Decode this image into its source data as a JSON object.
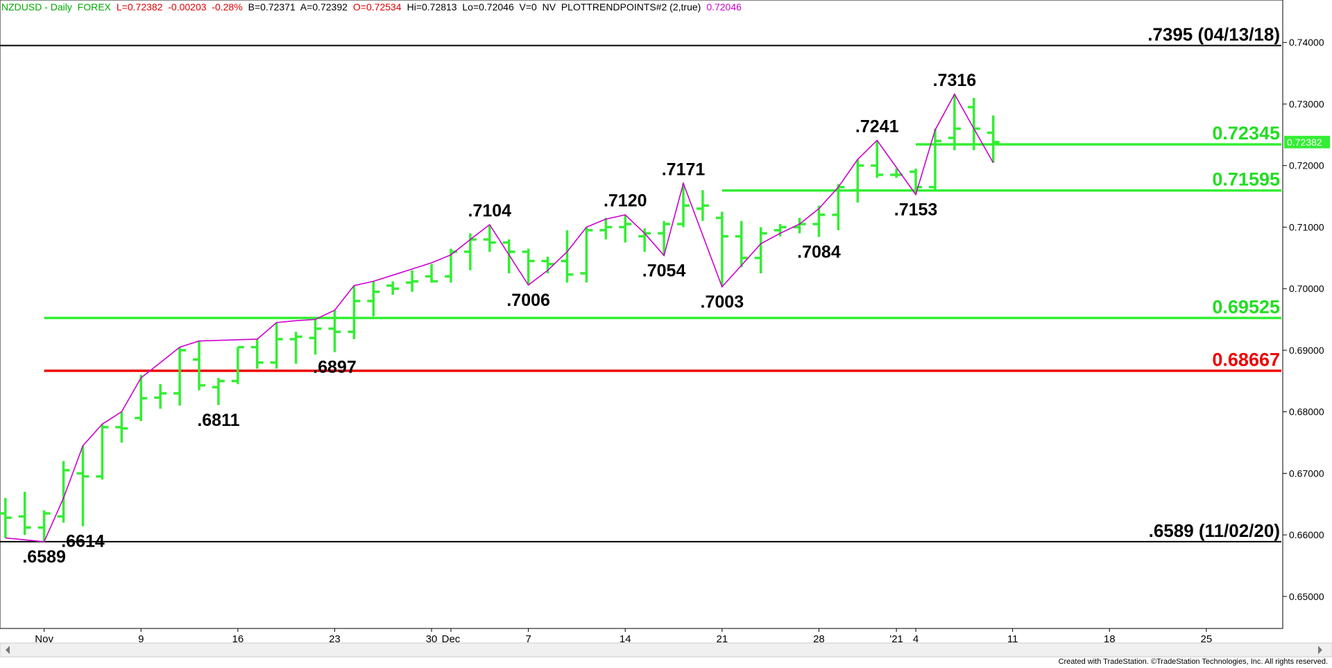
{
  "header": [
    {
      "text": "NZDUSD - Daily  FOREX",
      "color": "#00aa00"
    },
    {
      "text": "L=0.72382  -0.00203  -0.28%",
      "color": "#dd0000"
    },
    {
      "text": "B=0.72371  A=0.72392",
      "color": "#000000"
    },
    {
      "text": "O=0.72534",
      "color": "#dd0000"
    },
    {
      "text": "Hi=0.72813  Lo=0.72046  V=0  NV  PLOTTRENDPOINTS#2 (2,true)",
      "color": "#000000"
    },
    {
      "text": "0.72046",
      "color": "#cc00cc"
    }
  ],
  "footer": "Created with TradeStation. ©TradeStation Technologies, Inc. All rights reserved.",
  "chart_data": {
    "type": "ohlc",
    "color": "#33ee33",
    "trend_color": "#cc00cc",
    "ylim": [
      0.6448,
      0.7469
    ],
    "yticks": [
      {
        "value": 0.65,
        "label": "0.65000"
      },
      {
        "value": 0.66,
        "label": "0.66000"
      },
      {
        "value": 0.67,
        "label": "0.67000"
      },
      {
        "value": 0.68,
        "label": "0.68000"
      },
      {
        "value": 0.69,
        "label": "0.69000"
      },
      {
        "value": 0.7,
        "label": "0.70000"
      },
      {
        "value": 0.71,
        "label": "0.71000"
      },
      {
        "value": 0.72,
        "label": "0.72000"
      },
      {
        "value": 0.73,
        "label": "0.73000"
      },
      {
        "value": 0.74,
        "label": "0.74000"
      }
    ],
    "categories": [
      null,
      null,
      "Nov",
      null,
      null,
      null,
      null,
      "9",
      null,
      null,
      null,
      null,
      "16",
      null,
      null,
      null,
      null,
      "23",
      null,
      null,
      null,
      null,
      "30",
      "Dec",
      null,
      null,
      null,
      "7",
      null,
      null,
      null,
      null,
      "14",
      null,
      null,
      null,
      null,
      "21",
      null,
      null,
      null,
      null,
      "28",
      null,
      null,
      null,
      "'21",
      "4",
      null,
      null,
      null,
      null,
      "11",
      null,
      null,
      null,
      null,
      "18",
      null,
      null,
      null,
      null,
      "25",
      null,
      null,
      null
    ],
    "open": [
      0.6635,
      0.663,
      0.6612,
      0.663,
      0.67,
      0.6695,
      0.6775,
      0.679,
      0.6823,
      0.683,
      0.6885,
      0.684,
      0.685,
      0.6905,
      0.688,
      0.6918,
      0.692,
      0.6935,
      0.693,
      0.698,
      0.7005,
      0.701,
      0.702,
      0.702,
      0.706,
      0.708,
      0.7075,
      0.706,
      0.7045,
      0.7045,
      0.7025,
      0.7095,
      0.71,
      0.7085,
      0.709,
      0.7105,
      0.713,
      0.7115,
      0.7085,
      0.705,
      0.7095,
      0.71,
      0.7105,
      0.712,
      0.716,
      0.72,
      0.7185,
      0.719,
      0.7165,
      0.7245,
      0.7295,
      0.72534,
      null,
      null,
      null,
      null,
      null,
      null,
      null,
      null,
      null,
      null,
      null,
      null,
      null,
      null
    ],
    "high": [
      0.666,
      0.667,
      0.664,
      0.672,
      0.6745,
      0.678,
      0.68,
      0.686,
      0.6845,
      0.6905,
      0.6915,
      0.6855,
      0.6905,
      0.6918,
      0.6945,
      0.693,
      0.695,
      0.6965,
      0.7005,
      0.7012,
      0.7012,
      0.703,
      0.704,
      0.7065,
      0.709,
      0.7104,
      0.708,
      0.7065,
      0.7052,
      0.7095,
      0.71,
      0.7115,
      0.712,
      0.7098,
      0.711,
      0.7171,
      0.716,
      0.7125,
      0.711,
      0.71,
      0.7105,
      0.7115,
      0.7135,
      0.717,
      0.721,
      0.7241,
      0.7195,
      0.7195,
      0.726,
      0.7316,
      0.731,
      0.72813,
      null,
      null,
      null,
      null,
      null,
      null,
      null,
      null,
      null,
      null,
      null,
      null,
      null,
      null
    ],
    "low": [
      0.6595,
      0.66,
      0.6589,
      0.662,
      0.6614,
      0.669,
      0.675,
      0.6785,
      0.6805,
      0.681,
      0.6835,
      0.6811,
      0.6845,
      0.687,
      0.687,
      0.6878,
      0.6893,
      0.6897,
      0.6918,
      0.6955,
      0.699,
      0.6995,
      0.701,
      0.701,
      0.703,
      0.706,
      0.7025,
      0.7006,
      0.7025,
      0.701,
      0.701,
      0.708,
      0.7075,
      0.706,
      0.7054,
      0.71,
      0.711,
      0.7003,
      0.7035,
      0.7025,
      0.7085,
      0.709,
      0.7084,
      0.7095,
      0.714,
      0.718,
      0.718,
      0.7153,
      0.716,
      0.7225,
      0.7225,
      0.72046,
      null,
      null,
      null,
      null,
      null,
      null,
      null,
      null,
      null,
      null,
      null,
      null,
      null,
      null
    ],
    "close": [
      0.6628,
      0.6612,
      0.6635,
      0.6705,
      0.6695,
      0.6775,
      0.6773,
      0.6822,
      0.683,
      0.69,
      0.6843,
      0.685,
      0.6905,
      0.688,
      0.6918,
      0.6922,
      0.6935,
      0.693,
      0.698,
      0.6995,
      0.7,
      0.7012,
      0.7012,
      0.706,
      0.708,
      0.7075,
      0.706,
      0.7045,
      0.704,
      0.7023,
      0.7095,
      0.71,
      0.7105,
      0.709,
      0.7105,
      0.7135,
      0.7135,
      0.7085,
      0.705,
      0.709,
      0.71,
      0.7105,
      0.712,
      0.7165,
      0.72,
      0.7185,
      0.7185,
      0.7165,
      0.724,
      0.726,
      0.726,
      0.72382,
      null,
      null,
      null,
      null,
      null,
      null,
      null,
      null,
      null,
      null,
      null,
      null,
      null,
      null
    ],
    "high_labels": [
      null,
      null,
      null,
      null,
      null,
      null,
      null,
      null,
      null,
      null,
      null,
      null,
      null,
      null,
      null,
      null,
      null,
      null,
      null,
      null,
      null,
      null,
      null,
      null,
      null,
      ".7104",
      null,
      null,
      null,
      null,
      null,
      null,
      ".7120",
      null,
      null,
      ".7171",
      null,
      null,
      null,
      null,
      null,
      null,
      null,
      null,
      null,
      ".7241",
      null,
      null,
      null,
      ".7316",
      null,
      null,
      null,
      null,
      null,
      null,
      null,
      null,
      null,
      null,
      null,
      null,
      null,
      null,
      null,
      null
    ],
    "low_labels": [
      null,
      null,
      ".6589",
      null,
      ".6614",
      null,
      null,
      null,
      null,
      null,
      null,
      ".6811",
      null,
      null,
      null,
      null,
      null,
      ".6897",
      null,
      null,
      null,
      null,
      null,
      null,
      null,
      null,
      null,
      ".7006",
      null,
      null,
      null,
      null,
      null,
      null,
      ".7054",
      null,
      null,
      ".7003",
      null,
      null,
      null,
      null,
      ".7084",
      null,
      null,
      null,
      null,
      ".7153",
      null,
      null,
      null,
      null,
      null,
      null,
      null,
      null,
      null,
      null,
      null,
      null,
      null,
      null,
      null,
      null,
      null,
      null
    ],
    "trend": [
      0.6595,
      0.6592,
      0.6589,
      0.666,
      0.6745,
      0.678,
      0.68,
      0.6855,
      0.688,
      0.6905,
      0.6915,
      0.6916,
      0.6917,
      0.6918,
      0.6945,
      0.6948,
      0.695,
      0.6965,
      0.7005,
      0.7012,
      0.7022,
      0.7032,
      0.7042,
      0.7055,
      0.708,
      0.7104,
      0.7055,
      0.7006,
      0.703,
      0.706,
      0.71,
      0.7113,
      0.712,
      0.709,
      0.7054,
      0.7171,
      0.7087,
      0.7003,
      0.7038,
      0.7073,
      0.709,
      0.7105,
      0.713,
      0.7165,
      0.721,
      0.7241,
      0.7197,
      0.7153,
      0.7258,
      0.7316,
      0.726,
      0.72046,
      null,
      null,
      null,
      null,
      null,
      null,
      null,
      null,
      null,
      null,
      null,
      null,
      null,
      null
    ],
    "levels": [
      {
        "value": 0.7395,
        "label": ".7395 (04/13/18)",
        "color": "#000000"
      },
      {
        "value": 0.72345,
        "color": "#33ee33"
      },
      {
        "value": 0.71595,
        "color": "#33ee33"
      },
      {
        "value": 0.69525,
        "color": "#33ee33"
      },
      {
        "value": 0.68667,
        "color": "#ee0000"
      },
      {
        "value": 0.6589,
        "label": ".6589 (11/02/20)",
        "color": "#000000"
      }
    ]
  }
}
